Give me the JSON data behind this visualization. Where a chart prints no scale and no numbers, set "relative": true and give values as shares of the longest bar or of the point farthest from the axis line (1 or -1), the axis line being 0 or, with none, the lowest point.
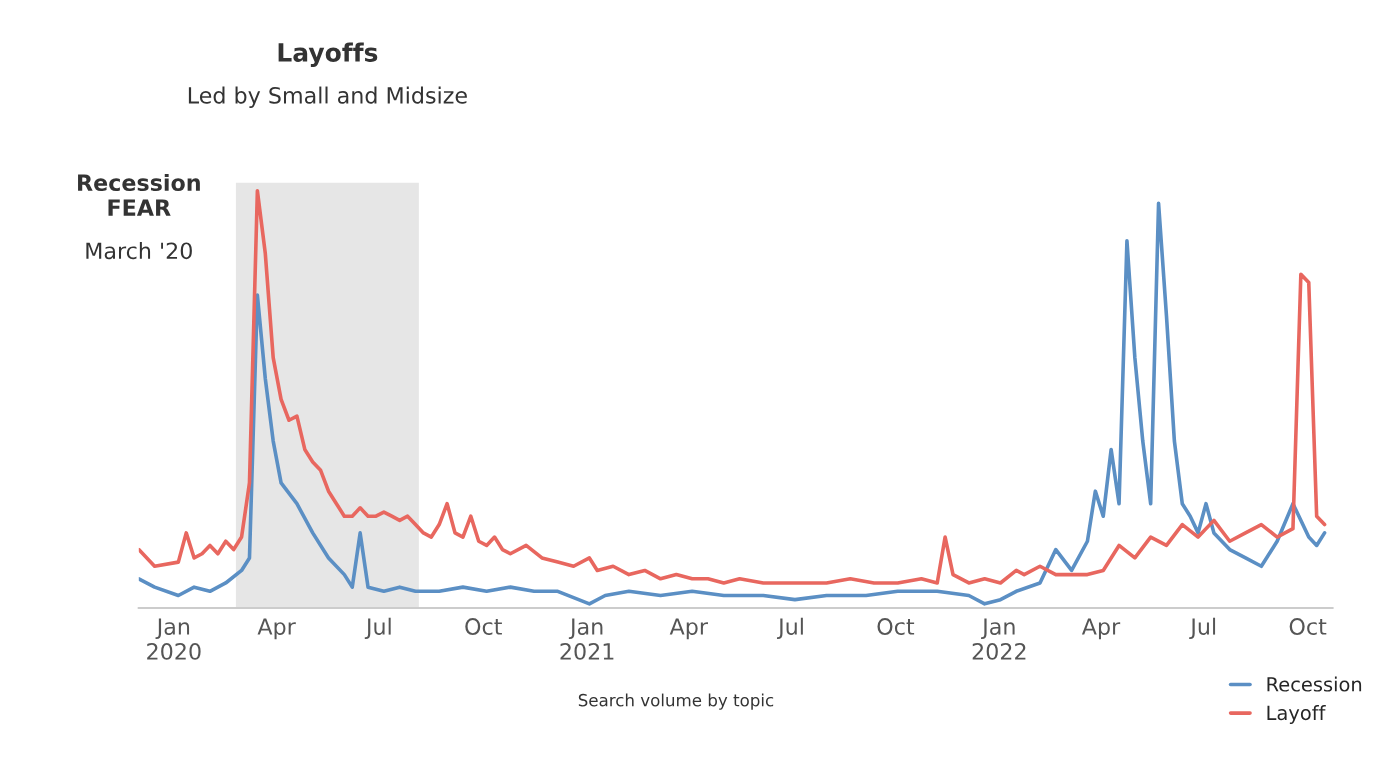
{
  "chart_data": {
    "type": "line",
    "relative": true,
    "annotations": [
      "Layoffs",
      "Led by Small and Midsize",
      "Recession\nFEAR",
      "March '20",
      "Search volume by topic"
    ],
    "xlim": [
      "2019-12-01",
      "2022-10-23"
    ],
    "xticks": [
      {
        "value": "2020-01-01",
        "label": "Jan\n2020"
      },
      {
        "value": "2020-04-01",
        "label": "Apr"
      },
      {
        "value": "2020-07-01",
        "label": "Jul"
      },
      {
        "value": "2020-10-01",
        "label": "Oct"
      },
      {
        "value": "2021-01-01",
        "label": "Jan\n2021"
      },
      {
        "value": "2021-04-01",
        "label": "Apr"
      },
      {
        "value": "2021-07-01",
        "label": "Jul"
      },
      {
        "value": "2021-10-01",
        "label": "Oct"
      },
      {
        "value": "2022-01-01",
        "label": "Jan\n2022"
      },
      {
        "value": "2022-04-01",
        "label": "Apr"
      },
      {
        "value": "2022-07-01",
        "label": "Jul"
      },
      {
        "value": "2022-10-01",
        "label": "Oct"
      }
    ],
    "bands": [
      {
        "axis": "x",
        "from": "2020-02-25",
        "to": "2020-08-05",
        "color": "#e6e6e6"
      }
    ],
    "grid": false,
    "legend": "bottom right",
    "marker": "none",
    "line_style": "solid",
    "series": [
      {
        "name": "Recession",
        "color": "#5b8fc4",
        "x": [
          "2019-12-01",
          "2019-12-15",
          "2020-01-05",
          "2020-01-19",
          "2020-02-02",
          "2020-02-16",
          "2020-03-01",
          "2020-03-08",
          "2020-03-15",
          "2020-03-22",
          "2020-03-29",
          "2020-04-05",
          "2020-04-19",
          "2020-05-03",
          "2020-05-17",
          "2020-05-31",
          "2020-06-07",
          "2020-06-14",
          "2020-06-21",
          "2020-07-05",
          "2020-07-19",
          "2020-08-02",
          "2020-08-23",
          "2020-09-13",
          "2020-10-04",
          "2020-10-25",
          "2020-11-15",
          "2020-12-06",
          "2021-01-03",
          "2021-01-17",
          "2021-02-07",
          "2021-03-07",
          "2021-04-04",
          "2021-05-02",
          "2021-06-06",
          "2021-07-04",
          "2021-08-01",
          "2021-09-05",
          "2021-10-03",
          "2021-11-07",
          "2021-12-05",
          "2021-12-19",
          "2022-01-02",
          "2022-01-16",
          "2022-02-06",
          "2022-02-20",
          "2022-03-06",
          "2022-03-20",
          "2022-03-27",
          "2022-04-03",
          "2022-04-10",
          "2022-04-17",
          "2022-04-24",
          "2022-05-01",
          "2022-05-08",
          "2022-05-15",
          "2022-05-22",
          "2022-05-29",
          "2022-06-05",
          "2022-06-12",
          "2022-06-19",
          "2022-06-26",
          "2022-07-03",
          "2022-07-10",
          "2022-07-24",
          "2022-08-07",
          "2022-08-21",
          "2022-09-04",
          "2022-09-18",
          "2022-10-02",
          "2022-10-09",
          "2022-10-16"
        ],
        "values": [
          0.07,
          0.05,
          0.03,
          0.05,
          0.04,
          0.06,
          0.09,
          0.12,
          0.75,
          0.55,
          0.4,
          0.3,
          0.25,
          0.18,
          0.12,
          0.08,
          0.05,
          0.18,
          0.05,
          0.04,
          0.05,
          0.04,
          0.04,
          0.05,
          0.04,
          0.05,
          0.04,
          0.04,
          0.01,
          0.03,
          0.04,
          0.03,
          0.04,
          0.03,
          0.03,
          0.02,
          0.03,
          0.03,
          0.04,
          0.04,
          0.03,
          0.01,
          0.02,
          0.04,
          0.06,
          0.14,
          0.09,
          0.16,
          0.28,
          0.22,
          0.38,
          0.25,
          0.88,
          0.6,
          0.4,
          0.25,
          0.97,
          0.7,
          0.4,
          0.25,
          0.22,
          0.18,
          0.25,
          0.18,
          0.14,
          0.12,
          0.1,
          0.16,
          0.25,
          0.17,
          0.15,
          0.18
        ]
      },
      {
        "name": "Layoff",
        "color": "#e8675f",
        "x": [
          "2019-12-01",
          "2019-12-15",
          "2020-01-05",
          "2020-01-12",
          "2020-01-19",
          "2020-01-26",
          "2020-02-02",
          "2020-02-09",
          "2020-02-16",
          "2020-02-23",
          "2020-03-01",
          "2020-03-08",
          "2020-03-15",
          "2020-03-22",
          "2020-03-29",
          "2020-04-05",
          "2020-04-12",
          "2020-04-19",
          "2020-04-26",
          "2020-05-03",
          "2020-05-10",
          "2020-05-17",
          "2020-05-24",
          "2020-05-31",
          "2020-06-07",
          "2020-06-14",
          "2020-06-21",
          "2020-06-28",
          "2020-07-05",
          "2020-07-12",
          "2020-07-19",
          "2020-07-26",
          "2020-08-02",
          "2020-08-09",
          "2020-08-16",
          "2020-08-23",
          "2020-08-30",
          "2020-09-06",
          "2020-09-13",
          "2020-09-20",
          "2020-09-27",
          "2020-10-04",
          "2020-10-11",
          "2020-10-18",
          "2020-10-25",
          "2020-11-08",
          "2020-11-22",
          "2020-12-06",
          "2020-12-20",
          "2021-01-03",
          "2021-01-10",
          "2021-01-24",
          "2021-02-07",
          "2021-02-21",
          "2021-03-07",
          "2021-03-21",
          "2021-04-04",
          "2021-04-18",
          "2021-05-02",
          "2021-05-16",
          "2021-06-06",
          "2021-06-27",
          "2021-07-11",
          "2021-08-01",
          "2021-08-22",
          "2021-09-12",
          "2021-10-03",
          "2021-10-24",
          "2021-11-07",
          "2021-11-14",
          "2021-11-21",
          "2021-12-05",
          "2021-12-19",
          "2022-01-02",
          "2022-01-16",
          "2022-01-23",
          "2022-02-06",
          "2022-02-20",
          "2022-03-06",
          "2022-03-20",
          "2022-04-03",
          "2022-04-17",
          "2022-05-01",
          "2022-05-15",
          "2022-05-29",
          "2022-06-12",
          "2022-06-26",
          "2022-07-10",
          "2022-07-24",
          "2022-08-07",
          "2022-08-21",
          "2022-09-04",
          "2022-09-18",
          "2022-09-25",
          "2022-10-02",
          "2022-10-09",
          "2022-10-16"
        ],
        "values": [
          0.14,
          0.1,
          0.11,
          0.18,
          0.12,
          0.13,
          0.15,
          0.13,
          0.16,
          0.14,
          0.17,
          0.3,
          1.0,
          0.85,
          0.6,
          0.5,
          0.45,
          0.46,
          0.38,
          0.35,
          0.33,
          0.28,
          0.25,
          0.22,
          0.22,
          0.24,
          0.22,
          0.22,
          0.23,
          0.22,
          0.21,
          0.22,
          0.2,
          0.18,
          0.17,
          0.2,
          0.25,
          0.18,
          0.17,
          0.22,
          0.16,
          0.15,
          0.17,
          0.14,
          0.13,
          0.15,
          0.12,
          0.11,
          0.1,
          0.12,
          0.09,
          0.1,
          0.08,
          0.09,
          0.07,
          0.08,
          0.07,
          0.07,
          0.06,
          0.07,
          0.06,
          0.06,
          0.06,
          0.06,
          0.07,
          0.06,
          0.06,
          0.07,
          0.06,
          0.17,
          0.08,
          0.06,
          0.07,
          0.06,
          0.09,
          0.08,
          0.1,
          0.08,
          0.08,
          0.08,
          0.09,
          0.15,
          0.12,
          0.17,
          0.15,
          0.2,
          0.17,
          0.21,
          0.16,
          0.18,
          0.2,
          0.17,
          0.19,
          0.8,
          0.78,
          0.22,
          0.2
        ]
      }
    ]
  }
}
